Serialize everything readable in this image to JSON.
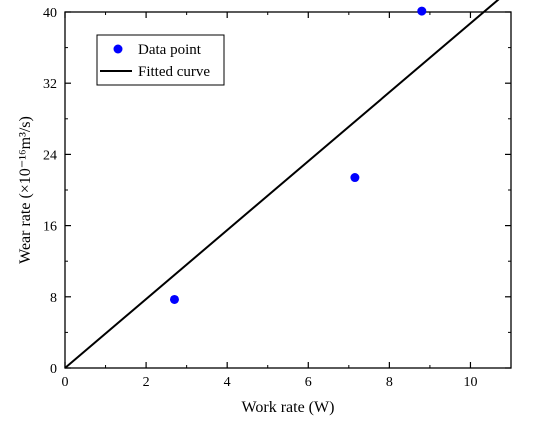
{
  "chart_data": {
    "type": "scatter",
    "xlabel": "Work rate (W)",
    "ylabel": "Wear rate (×10⁻¹⁶m³/s)",
    "xlim": [
      0,
      11
    ],
    "ylim": [
      0,
      40
    ],
    "x_ticks": [
      0,
      2,
      4,
      6,
      8,
      10
    ],
    "y_ticks": [
      0,
      8,
      16,
      24,
      32,
      40
    ],
    "x_tick_labels": [
      "0",
      "2",
      "4",
      "6",
      "8",
      "10"
    ],
    "y_tick_labels": [
      "0",
      "8",
      "16",
      "24",
      "32",
      "40"
    ],
    "series": [
      {
        "name": "Data point",
        "kind": "scatter",
        "color": "#0000ff",
        "x": [
          2.7,
          7.15,
          8.8
        ],
        "y": [
          7.7,
          21.4,
          40.1
        ]
      },
      {
        "name": "Fitted curve",
        "kind": "line",
        "color": "#000000",
        "x": [
          0,
          11
        ],
        "y": [
          0,
          42.6
        ]
      }
    ],
    "legend_position": "top-left",
    "grid": false
  }
}
